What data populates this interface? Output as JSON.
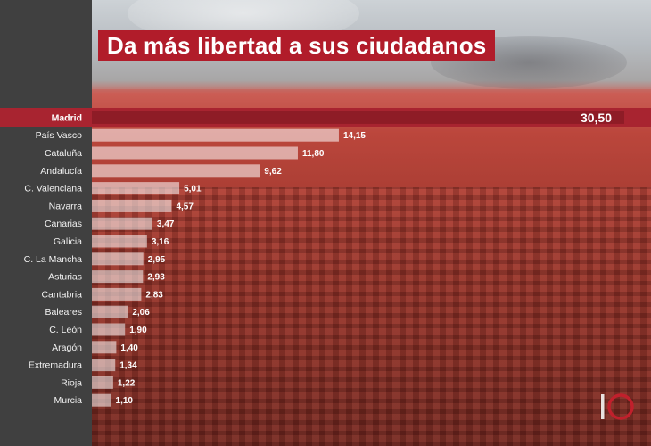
{
  "title": "Da más libertad a sus ciudadanos",
  "colors": {
    "accent": "#b11c2a",
    "highlight": "#a82430",
    "panel": "#404040",
    "bar": "#ffffff"
  },
  "logo_icon": "io-logo",
  "chart_data": {
    "type": "bar",
    "orientation": "horizontal",
    "title": "Da más libertad a sus ciudadanos",
    "categories": [
      "Madrid",
      "País Vasco",
      "Cataluña",
      "Andalucía",
      "C. Valenciana",
      "Navarra",
      "Canarias",
      "Galicia",
      "C. La Mancha",
      "Asturias",
      "Cantabria",
      "Baleares",
      "C. León",
      "Aragón",
      "Extremadura",
      "Rioja",
      "Murcia"
    ],
    "values": [
      30.5,
      14.15,
      11.8,
      9.62,
      5.01,
      4.57,
      3.47,
      3.16,
      2.95,
      2.93,
      2.83,
      2.06,
      1.9,
      1.4,
      1.34,
      1.22,
      1.1
    ],
    "value_labels": [
      "30,50",
      "14,15",
      "11,80",
      "9,62",
      "5,01",
      "4,57",
      "3,47",
      "3,16",
      "2,95",
      "2,93",
      "2,83",
      "2,06",
      "1,90",
      "1,40",
      "1,34",
      "1,22",
      "1,10"
    ],
    "highlight": "Madrid",
    "xlabel": "",
    "ylabel": "",
    "grid": false
  }
}
